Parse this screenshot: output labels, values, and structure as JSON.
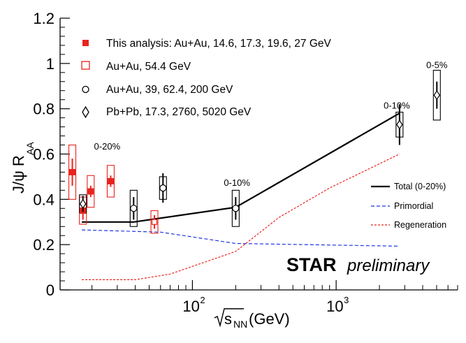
{
  "chart_data": {
    "type": "scatter",
    "title": "",
    "xlabel": {
      "sqrt": "s",
      "sub": "NN",
      "unit": "(GeV)"
    },
    "ylabel": {
      "main": "J/ψ R",
      "sub": "AA"
    },
    "xscale": "log",
    "xlim": [
      12,
      7000
    ],
    "ylim": [
      0,
      1.2
    ],
    "y_ticks": [
      "0",
      "0.2",
      "0.4",
      "0.6",
      "0.8",
      "1",
      "1.2"
    ],
    "x_ticks": [
      {
        "base": "10",
        "exp": "2",
        "value": 100
      },
      {
        "base": "10",
        "exp": "3",
        "value": 1000
      }
    ],
    "watermark": {
      "bold": "STAR",
      "italic": "preliminary"
    },
    "legend": [
      {
        "label": "This analysis: Au+Au, 14.6, 17.3, 19.6, 27 GeV",
        "marker": "filled-square",
        "color": "#e8231e"
      },
      {
        "label": "Au+Au, 54.4 GeV",
        "marker": "open-square",
        "color": "#e8231e"
      },
      {
        "label": "Au+Au, 39, 62.4, 200 GeV",
        "marker": "open-circle",
        "color": "#000000"
      },
      {
        "label": "Pb+Pb, 17.3, 2760, 5020 GeV",
        "marker": "open-diamond",
        "color": "#000000"
      }
    ],
    "model_legend": [
      {
        "label": "Total (0-20%)",
        "style": "solid",
        "color": "#000000"
      },
      {
        "label": "Primordial",
        "style": "dashed",
        "color": "#2233dd"
      },
      {
        "label": "Regeneration",
        "style": "dashed",
        "color": "#e8231e"
      }
    ],
    "annotations": [
      {
        "text": "0-20%",
        "x": 25.5,
        "y": 0.62
      },
      {
        "text": "0-10%",
        "x": 204,
        "y": 0.46
      },
      {
        "text": "0-10%",
        "x": 2640,
        "y": 0.8
      },
      {
        "text": "0-5%",
        "x": 5020,
        "y": 0.98
      }
    ],
    "series": [
      {
        "name": "This analysis: Au+Au, 14.6, 17.3, 19.6, 27 GeV",
        "marker": "filled-square",
        "color": "#e8231e",
        "points": [
          {
            "x": 14.6,
            "y": 0.52,
            "stat": 0.06,
            "sys": 0.12
          },
          {
            "x": 17.3,
            "y": 0.35,
            "stat": 0.04,
            "sys": 0.06
          },
          {
            "x": 19.6,
            "y": 0.435,
            "stat": 0.025,
            "sys": 0.07
          },
          {
            "x": 27,
            "y": 0.48,
            "stat": 0.025,
            "sys": 0.07
          }
        ]
      },
      {
        "name": "Au+Au, 54.4 GeV",
        "marker": "open-square",
        "color": "#e8231e",
        "points": [
          {
            "x": 54.4,
            "y": 0.3,
            "stat": 0.03,
            "sys": 0.05
          }
        ]
      },
      {
        "name": "Au+Au, 39, 62.4, 200 GeV",
        "marker": "open-circle",
        "color": "#000000",
        "points": [
          {
            "x": 39,
            "y": 0.36,
            "stat": 0.05,
            "sys": 0.08
          },
          {
            "x": 62.4,
            "y": 0.45,
            "stat": 0.065,
            "sys": 0.05
          },
          {
            "x": 200,
            "y": 0.36,
            "stat": 0.05,
            "sys": 0.08
          }
        ]
      },
      {
        "name": "Pb+Pb, 17.3, 2760, 5020 GeV",
        "marker": "open-diamond",
        "color": "#000000",
        "points": [
          {
            "x": 17.3,
            "y": 0.38,
            "stat": 0.035,
            "sys": 0.04
          },
          {
            "x": 2760,
            "y": 0.73,
            "stat": 0.09,
            "sys": 0.055
          },
          {
            "x": 5020,
            "y": 0.86,
            "stat": 0.06,
            "sys": 0.11
          }
        ]
      }
    ],
    "models": [
      {
        "name": "Total (0-20%)",
        "style": "solid",
        "color": "#000000",
        "x": [
          17,
          39,
          200,
          2760
        ],
        "y": [
          0.3,
          0.3,
          0.365,
          0.78
        ]
      },
      {
        "name": "Primordial",
        "style": "dashed",
        "color": "#2233dd",
        "x": [
          17,
          60,
          200,
          2760
        ],
        "y": [
          0.265,
          0.255,
          0.205,
          0.193
        ]
      },
      {
        "name": "Regeneration",
        "style": "dashed",
        "color": "#e8231e",
        "x": [
          17,
          40,
          70,
          200,
          400,
          900,
          2760
        ],
        "y": [
          0.045,
          0.045,
          0.07,
          0.17,
          0.32,
          0.45,
          0.6
        ]
      }
    ]
  }
}
